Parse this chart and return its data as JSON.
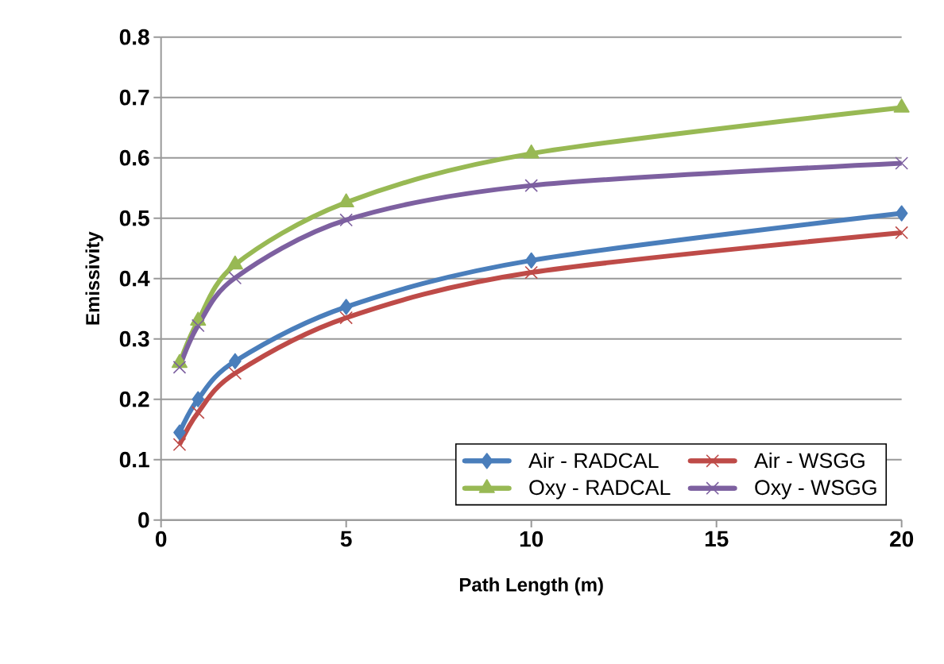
{
  "chart_data": {
    "type": "line",
    "xlabel": "Path Length (m)",
    "ylabel": "Emissivity",
    "xlim": [
      0,
      20
    ],
    "xticks": [
      0,
      5,
      10,
      15,
      20
    ],
    "ylim": [
      0,
      0.8
    ],
    "yticks": [
      0,
      0.1,
      0.2,
      0.3,
      0.4,
      0.5,
      0.6,
      0.7,
      0.8
    ],
    "grid": "y",
    "legend": "bottom right",
    "line_style": "solid",
    "x": [
      0.5,
      1,
      2,
      5,
      10,
      20
    ],
    "series": [
      {
        "name": "Air - RADCAL",
        "color": "#4a7ebb",
        "marker": "diamond",
        "values": [
          0.145,
          0.2,
          0.263,
          0.353,
          0.43,
          0.508
        ]
      },
      {
        "name": "Air - WSGG",
        "color": "#be4b48",
        "marker": "cross",
        "values": [
          0.125,
          0.178,
          0.243,
          0.335,
          0.41,
          0.476
        ]
      },
      {
        "name": "Oxy - RADCAL",
        "color": "#98b954",
        "marker": "triangle",
        "values": [
          0.26,
          0.33,
          0.423,
          0.526,
          0.607,
          0.683
        ]
      },
      {
        "name": "Oxy - WSGG",
        "color": "#7d60a0",
        "marker": "cross",
        "values": [
          0.253,
          0.322,
          0.401,
          0.497,
          0.554,
          0.591
        ]
      }
    ]
  }
}
